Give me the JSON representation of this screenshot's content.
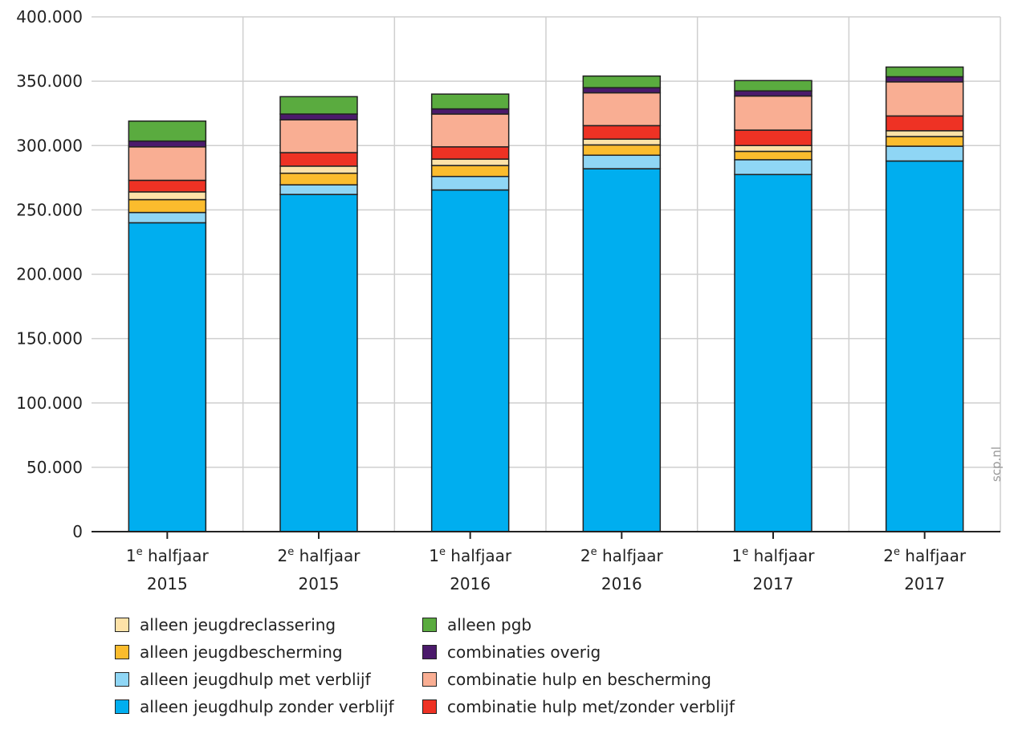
{
  "chart_data": {
    "type": "bar",
    "stacked": true,
    "title": "",
    "xlabel": "",
    "ylabel": "",
    "ylim": [
      0,
      400000
    ],
    "yticks": [
      0,
      50000,
      100000,
      150000,
      200000,
      250000,
      300000,
      350000,
      400000
    ],
    "ytick_labels": [
      "0",
      "50.000",
      "100.000",
      "150.000",
      "200.000",
      "250.000",
      "300.000",
      "350.000",
      "400.000"
    ],
    "grid": true,
    "legend_position": "bottom",
    "categories": [
      {
        "prefix": "1",
        "sup": "e",
        "label": " halfjaar",
        "year": "2015"
      },
      {
        "prefix": "2",
        "sup": "e",
        "label": " halfjaar",
        "year": "2015"
      },
      {
        "prefix": "1",
        "sup": "e",
        "label": " halfjaar",
        "year": "2016"
      },
      {
        "prefix": "2",
        "sup": "e",
        "label": " halfjaar",
        "year": "2016"
      },
      {
        "prefix": "1",
        "sup": "e",
        "label": " halfjaar",
        "year": "2017"
      },
      {
        "prefix": "2",
        "sup": "e",
        "label": " halfjaar",
        "year": "2017"
      }
    ],
    "series": [
      {
        "name": "alleen jeugdhulp zonder verblijf",
        "color": "#00aeef",
        "values": [
          240000,
          262000,
          265500,
          282000,
          277500,
          288000
        ]
      },
      {
        "name": "alleen jeugdhulp met verblijf",
        "color": "#8fd6f5",
        "values": [
          8000,
          7500,
          10500,
          10500,
          11500,
          11500
        ]
      },
      {
        "name": "alleen jeugdbescherming",
        "color": "#fbbc2d",
        "values": [
          10000,
          9000,
          8500,
          8000,
          6500,
          7500
        ]
      },
      {
        "name": "alleen jeugdreclassering",
        "color": "#fee2a8",
        "values": [
          6000,
          5500,
          5000,
          4500,
          4500,
          4500
        ]
      },
      {
        "name": "combinatie hulp met/zonder verblijf",
        "color": "#ee3224",
        "values": [
          9000,
          10500,
          9500,
          10500,
          12000,
          11500
        ]
      },
      {
        "name": "combinatie hulp en bescherming",
        "color": "#f9ae93",
        "values": [
          26000,
          25500,
          25500,
          25500,
          26500,
          26500
        ]
      },
      {
        "name": "combinaties overig",
        "color": "#4b1a6b",
        "values": [
          4500,
          4500,
          4000,
          4000,
          4000,
          4000
        ]
      },
      {
        "name": "alleen pgb",
        "color": "#5aab3f",
        "values": [
          15500,
          13500,
          11500,
          9000,
          8000,
          7500
        ]
      }
    ]
  },
  "legend": {
    "items": [
      {
        "label": "alleen jeugdreclassering",
        "color": "#fee2a8"
      },
      {
        "label": "alleen jeugdbescherming",
        "color": "#fbbc2d"
      },
      {
        "label": "alleen jeugdhulp met verblijf",
        "color": "#8fd6f5"
      },
      {
        "label": "alleen jeugdhulp zonder verblijf",
        "color": "#00aeef"
      },
      {
        "label": "alleen pgb",
        "color": "#5aab3f"
      },
      {
        "label": "combinaties overig",
        "color": "#4b1a6b"
      },
      {
        "label": "combinatie hulp en bescherming",
        "color": "#f9ae93"
      },
      {
        "label": "combinatie hulp met/zonder verblijf",
        "color": "#ee3224"
      }
    ]
  },
  "watermark": "scp.nl"
}
